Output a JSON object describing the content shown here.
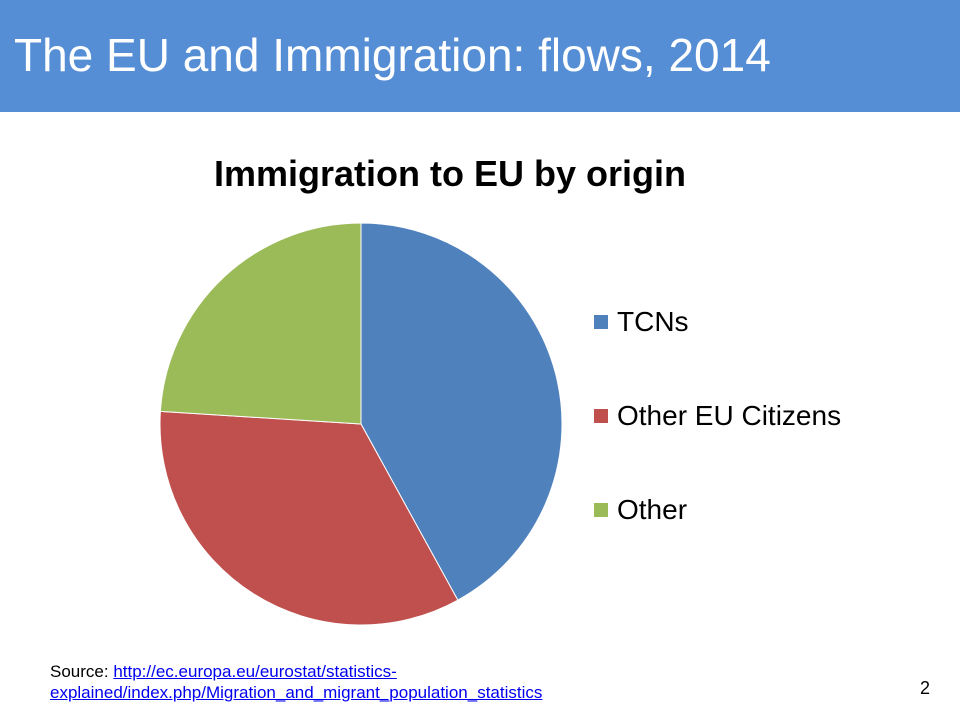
{
  "slide": {
    "title": "The EU and Immigration: flows, 2014",
    "page_number": "2"
  },
  "source": {
    "label": "Source:",
    "url_line1": "http://ec.europa.eu/eurostat/statistics-",
    "url_line2": "explained/index.php/Migration_and_migrant_population_statistics"
  },
  "colors": {
    "title_bar": "#558ed5",
    "link": "#0000ee"
  },
  "chart_data": {
    "type": "pie",
    "title": "Immigration to EU by origin",
    "legend_position": "right",
    "slices": [
      {
        "label": "TCNs",
        "value": 42,
        "color": "#4f81bd"
      },
      {
        "label": "Other EU Citizens",
        "value": 34,
        "color": "#c0504d"
      },
      {
        "label": "Other",
        "value": 24,
        "color": "#9bbb59"
      }
    ]
  }
}
